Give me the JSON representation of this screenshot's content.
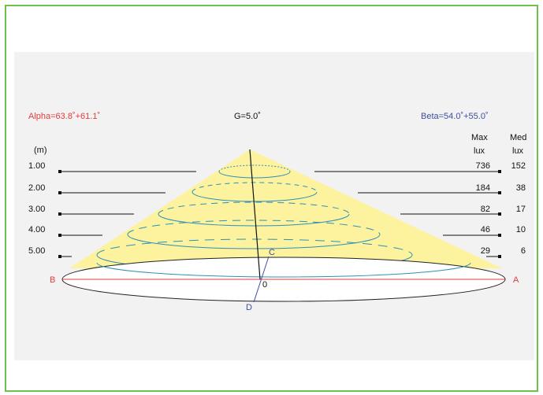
{
  "header": {
    "alpha": "Alpha=63.8˚+61.1˚",
    "gamma": "G=5.0˚",
    "beta": "Beta=54.0˚+55.0˚"
  },
  "columns": {
    "distance_unit": "(m)",
    "max_label_1": "Max",
    "max_label_2": "lux",
    "med_label_1": "Med",
    "med_label_2": "lux"
  },
  "rows": [
    {
      "distance": "1.00",
      "max": "736",
      "med": "152"
    },
    {
      "distance": "2.00",
      "max": "184",
      "med": "38"
    },
    {
      "distance": "3.00",
      "max": "82",
      "med": "17"
    },
    {
      "distance": "4.00",
      "max": "46",
      "med": "10"
    },
    {
      "distance": "5.00",
      "max": "29",
      "med": "6"
    }
  ],
  "points": {
    "a": "A",
    "b": "B",
    "c": "C",
    "d": "D",
    "origin": "0"
  },
  "colors": {
    "cone": "#fdf39e",
    "alpha": "#e53b3b",
    "beta": "#3f4fa0",
    "contour": "#2f8fb8",
    "frame": "#6cc24a"
  }
}
